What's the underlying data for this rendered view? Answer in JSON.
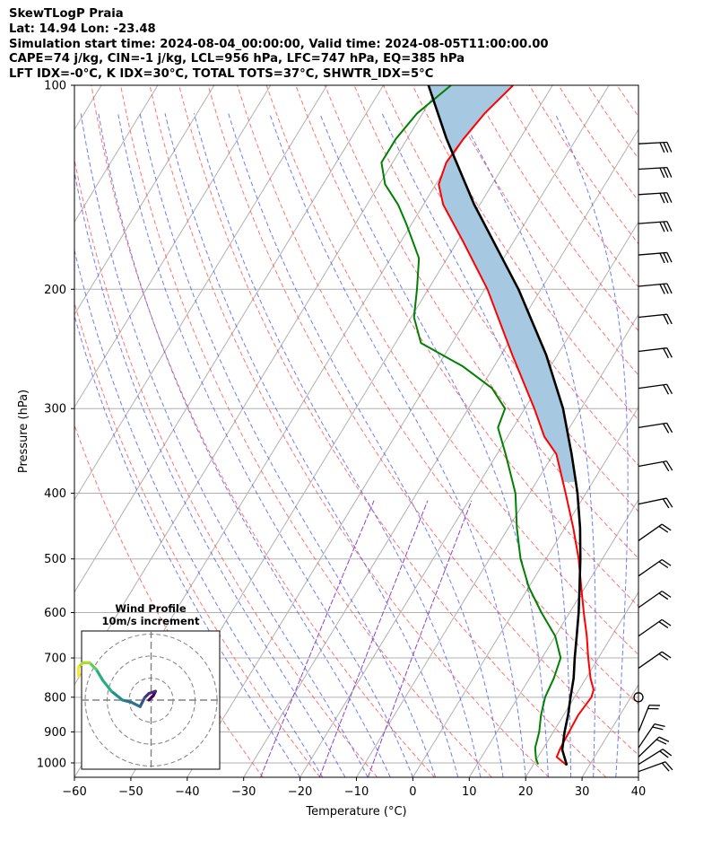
{
  "header": {
    "line1": "SkewTLogP Praia",
    "line2": "Lat: 14.94   Lon: -23.48",
    "line3": "Simulation start time: 2024-08-04_00:00:00, Valid time: 2024-08-05T11:00:00.00",
    "line4": "CAPE=74 j/kg, CIN=-1 j/kg, LCL=956 hPa, LFC=747 hPa, EQ=385 hPa",
    "line5": "LFT IDX=-0°C, K IDX=30°C, TOTAL TOTS=37°C, SHWTR_IDX=5°C"
  },
  "chart_data": {
    "type": "line",
    "subtype": "skew-t log-p diagram",
    "xlabel": "Temperature (°C)",
    "ylabel": "Pressure (hPa)",
    "xlim": [
      -60,
      40
    ],
    "ylim_hPa": [
      1050,
      100
    ],
    "y_scale": "log",
    "grid": true,
    "x_ticks": [
      -60,
      -50,
      -40,
      -30,
      -20,
      -10,
      0,
      10,
      20,
      30,
      40
    ],
    "x_tick_labels": [
      "−60",
      "−50",
      "−40",
      "−30",
      "−20",
      "−10",
      "0",
      "10",
      "20",
      "30",
      "40"
    ],
    "y_ticks": [
      1000,
      900,
      800,
      700,
      600,
      500,
      400,
      300,
      200,
      100
    ],
    "y_tick_labels": [
      "1000",
      "900",
      "800",
      "700",
      "600",
      "500",
      "400",
      "300",
      "200",
      "100"
    ],
    "series": [
      {
        "key": "temperature",
        "color": "#ff0000",
        "points": [
          [
            1008,
            26
          ],
          [
            980,
            23.3
          ],
          [
            950,
            23
          ],
          [
            900,
            22.8
          ],
          [
            850,
            22.6
          ],
          [
            800,
            23
          ],
          [
            780,
            22.6
          ],
          [
            750,
            20.8
          ],
          [
            700,
            18.2
          ],
          [
            650,
            15.6
          ],
          [
            600,
            12.5
          ],
          [
            550,
            9.3
          ],
          [
            500,
            5.8
          ],
          [
            450,
            1.5
          ],
          [
            400,
            -3.6
          ],
          [
            350,
            -9.5
          ],
          [
            330,
            -13.5
          ],
          [
            300,
            -18.3
          ],
          [
            250,
            -28
          ],
          [
            200,
            -39.5
          ],
          [
            170,
            -49
          ],
          [
            150,
            -56.5
          ],
          [
            140,
            -59.5
          ],
          [
            130,
            -60.5
          ],
          [
            120,
            -60
          ],
          [
            110,
            -59
          ],
          [
            100,
            -57
          ]
        ]
      },
      {
        "key": "dewpoint",
        "color": "#008000",
        "points": [
          [
            1005,
            20.8
          ],
          [
            985,
            19.8
          ],
          [
            950,
            18.5
          ],
          [
            900,
            17.5
          ],
          [
            850,
            16
          ],
          [
            800,
            14.8
          ],
          [
            750,
            14.3
          ],
          [
            700,
            13.3
          ],
          [
            650,
            10
          ],
          [
            600,
            5
          ],
          [
            550,
            0
          ],
          [
            500,
            -4.5
          ],
          [
            450,
            -8.5
          ],
          [
            400,
            -12.5
          ],
          [
            350,
            -18.5
          ],
          [
            320,
            -22.7
          ],
          [
            300,
            -23.5
          ],
          [
            280,
            -28
          ],
          [
            260,
            -35.5
          ],
          [
            240,
            -45.5
          ],
          [
            220,
            -49.5
          ],
          [
            200,
            -52
          ],
          [
            180,
            -55
          ],
          [
            160,
            -61
          ],
          [
            150,
            -64.5
          ],
          [
            140,
            -69
          ],
          [
            130,
            -72
          ],
          [
            120,
            -72
          ],
          [
            110,
            -71
          ],
          [
            100,
            -68
          ]
        ]
      },
      {
        "key": "parcel",
        "color": "#000000",
        "points": [
          [
            1008,
            26
          ],
          [
            956,
            23.5
          ],
          [
            900,
            22
          ],
          [
            850,
            20.8
          ],
          [
            800,
            19.3
          ],
          [
            750,
            17.8
          ],
          [
            700,
            15.8
          ],
          [
            650,
            13.8
          ],
          [
            600,
            11.6
          ],
          [
            550,
            9
          ],
          [
            500,
            6.1
          ],
          [
            450,
            2.7
          ],
          [
            400,
            -1.5
          ],
          [
            385,
            -3
          ],
          [
            350,
            -6.8
          ],
          [
            300,
            -13.2
          ],
          [
            250,
            -22
          ],
          [
            200,
            -34
          ],
          [
            150,
            -51
          ],
          [
            120,
            -63
          ],
          [
            100,
            -72
          ]
        ]
      }
    ],
    "shaded_area": {
      "color": "#a6c8e0",
      "between": [
        "parcel",
        "temperature"
      ],
      "from_hPa": 385,
      "to_hPa": 100
    },
    "background_lines": {
      "isotherm_color": "#b0b0b0",
      "dry_adiabat_color": "#ff5050",
      "moist_adiabat_color": "#4a5cf0",
      "mixing_ratio_color": "#9040c8"
    },
    "wind_barbs": {
      "pressures_hPa": [
        1030,
        1005,
        980,
        950,
        900,
        800,
        725,
        650,
        590,
        530,
        470,
        415,
        365,
        320,
        280,
        247,
        220,
        198,
        178,
        160,
        145,
        133,
        122
      ],
      "calm_marker_hPa": 800
    },
    "wind_profile_inset": {
      "title": "Wind Profile",
      "subtitle": "10m/s increment",
      "rings_m_s": [
        10,
        20,
        30
      ],
      "hodograph_uv": [
        [
          -1,
          0
        ],
        [
          1,
          2
        ],
        [
          2,
          4
        ],
        [
          -1,
          3
        ],
        [
          -3,
          1
        ],
        [
          -5,
          -3
        ],
        [
          -9,
          -1
        ],
        [
          -13,
          0
        ],
        [
          -18,
          4
        ],
        [
          -22,
          9
        ],
        [
          -25,
          14
        ],
        [
          -28,
          17
        ],
        [
          -31,
          17
        ],
        [
          -33,
          15
        ],
        [
          -33,
          11
        ]
      ]
    }
  }
}
